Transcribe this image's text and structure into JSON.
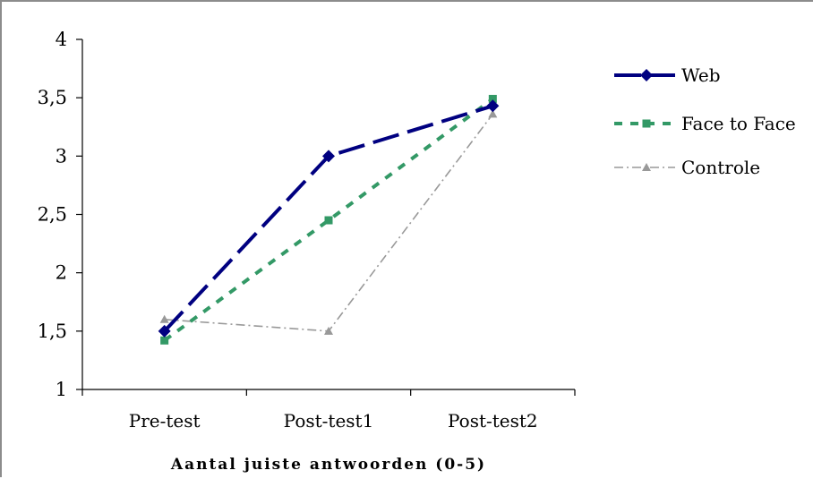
{
  "chart_data": {
    "type": "line",
    "categories": [
      "Pre-test",
      "Post-test1",
      "Post-test2"
    ],
    "series": [
      {
        "name": "Web",
        "values": [
          1.5,
          3.0,
          3.43
        ],
        "color": "#000080",
        "marker": "diamond",
        "dash": "long-dash"
      },
      {
        "name": "Face to Face",
        "values": [
          1.42,
          2.45,
          3.49
        ],
        "color": "#339966",
        "marker": "square",
        "dash": "dotted"
      },
      {
        "name": "Controle",
        "values": [
          1.6,
          1.5,
          3.36
        ],
        "color": "#999999",
        "marker": "triangle",
        "dash": "dash-dot"
      }
    ],
    "title": "",
    "xlabel": "Aantal juiste antwoorden (0-5)",
    "ylabel": "",
    "ylim": [
      1,
      4
    ],
    "yticks": [
      "1",
      "1,5",
      "2",
      "2,5",
      "3",
      "3,5",
      "4"
    ],
    "grid": false,
    "legend_position": "right"
  }
}
